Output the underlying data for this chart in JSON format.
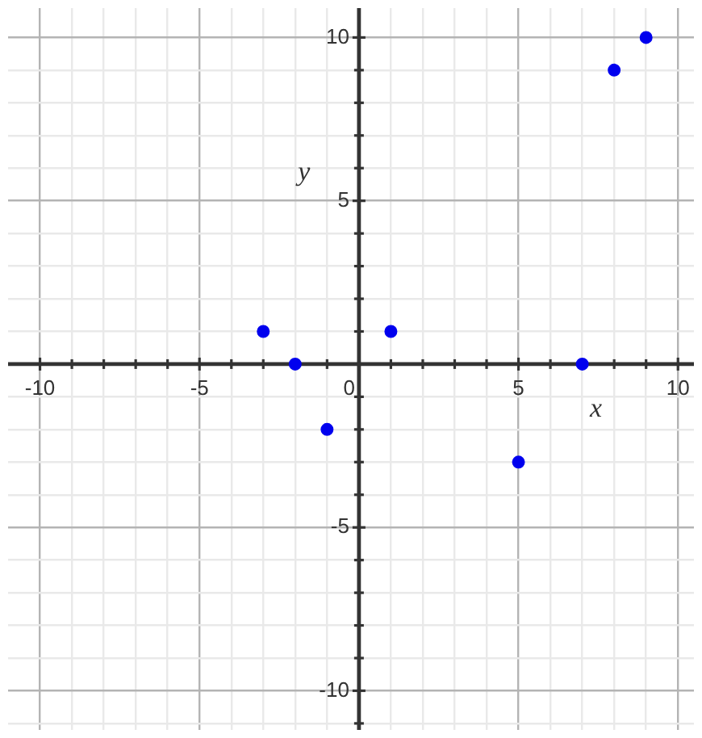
{
  "chart_data": {
    "type": "scatter",
    "xlabel": "x",
    "ylabel": "y",
    "x": [
      -3,
      -2,
      -1,
      1,
      5,
      7,
      8,
      9
    ],
    "values": [
      1,
      0,
      -2,
      1,
      -3,
      0,
      9,
      10
    ],
    "color": "#0000ee",
    "marker": "circle",
    "grid": true,
    "xlim": [
      -11,
      10.5
    ],
    "ylim": [
      -11.2,
      10.9
    ],
    "xticks": [
      -10,
      {
        "value": -9,
        "label": null
      },
      {
        "value": -8,
        "label": null
      },
      {
        "value": -7,
        "label": null
      },
      {
        "value": -6,
        "label": null
      },
      -5,
      {
        "value": -4,
        "label": null
      },
      {
        "value": -3,
        "label": null
      },
      {
        "value": -2,
        "label": null
      },
      {
        "value": -1,
        "label": null
      },
      0,
      {
        "value": 1,
        "label": null
      },
      {
        "value": 2,
        "label": null
      },
      {
        "value": 3,
        "label": null
      },
      {
        "value": 4,
        "label": null
      },
      5,
      {
        "value": 6,
        "label": null
      },
      {
        "value": 7,
        "label": null
      },
      {
        "value": 8,
        "label": null
      },
      {
        "value": 9,
        "label": null
      },
      10
    ],
    "yticks": [
      {
        "value": -11,
        "label": null
      },
      -10,
      {
        "value": -9,
        "label": null
      },
      {
        "value": -8,
        "label": null
      },
      {
        "value": -7,
        "label": null
      },
      {
        "value": -6,
        "label": null
      },
      -5,
      {
        "value": -4,
        "label": null
      },
      {
        "value": -3,
        "label": null
      },
      {
        "value": -2,
        "label": null
      },
      {
        "value": -1,
        "label": null
      },
      {
        "value": 0,
        "label": null
      },
      {
        "value": 1,
        "label": null
      },
      {
        "value": 2,
        "label": null
      },
      {
        "value": 3,
        "label": null
      },
      {
        "value": 4,
        "label": null
      },
      5,
      {
        "value": 6,
        "label": null
      },
      {
        "value": 7,
        "label": null
      },
      {
        "value": 8,
        "label": null
      },
      {
        "value": 9,
        "label": null
      },
      10
    ]
  }
}
